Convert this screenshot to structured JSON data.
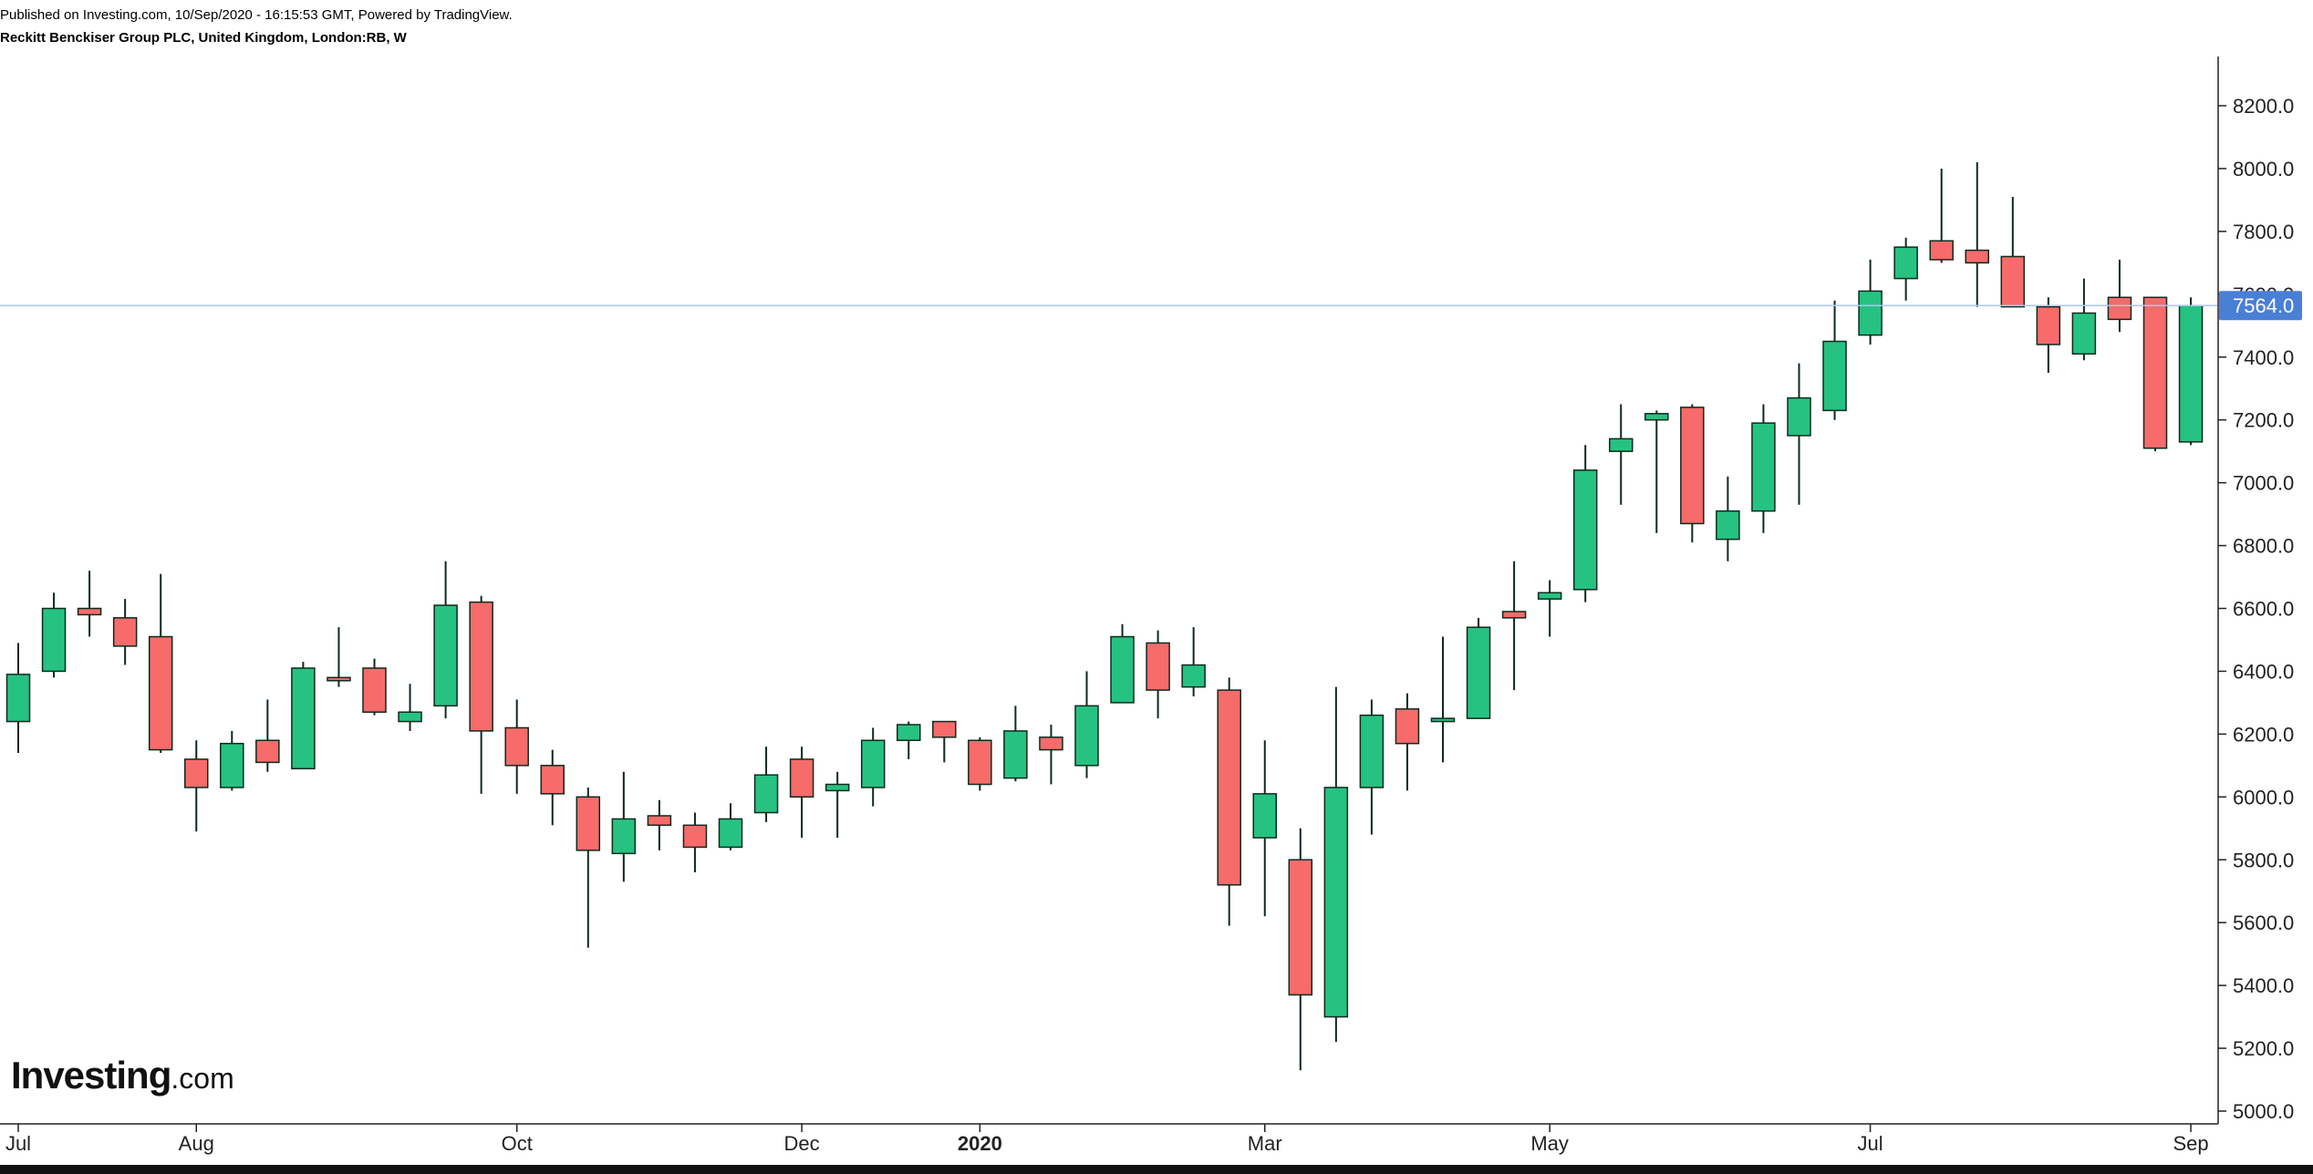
{
  "header": {
    "published": "Published on Investing.com, 10/Sep/2020 - 16:15:53 GMT, Powered by TradingView.",
    "symbol": "Reckitt Benckiser Group PLC, United Kingdom, London:RB, W"
  },
  "logo": {
    "brand": "Investing",
    "tld": ".com"
  },
  "colors": {
    "up": "#26c281",
    "down": "#f76b6b",
    "wick": "#0d2a1c",
    "price_line": "#a9c7ee",
    "price_tag": "#4a7fd6"
  },
  "chart_data": {
    "type": "candlestick",
    "interval": "W",
    "ylim": [
      4950,
      8370
    ],
    "y_ticks": [
      5000,
      5200,
      5400,
      5600,
      5800,
      6000,
      6200,
      6400,
      6600,
      6800,
      7000,
      7200,
      7400,
      7600,
      7800,
      8000,
      8200
    ],
    "y_tick_labels": [
      "5000.0",
      "5200.0",
      "5400.0",
      "5600.0",
      "5800.0",
      "6000.0",
      "6200.0",
      "6400.0",
      "6600.0",
      "6800.0",
      "7000.0",
      "7200.0",
      "7400.0",
      "7600.0",
      "7800.0",
      "8000.0",
      "8200.0"
    ],
    "x_labels": [
      {
        "label": "Jul",
        "index": 0,
        "bold": false
      },
      {
        "label": "Aug",
        "index": 5,
        "bold": false
      },
      {
        "label": "Oct",
        "index": 14,
        "bold": false
      },
      {
        "label": "Dec",
        "index": 22,
        "bold": false
      },
      {
        "label": "2020",
        "index": 27,
        "bold": true
      },
      {
        "label": "Mar",
        "index": 35,
        "bold": false
      },
      {
        "label": "May",
        "index": 43,
        "bold": false
      },
      {
        "label": "Jul",
        "index": 52,
        "bold": false
      },
      {
        "label": "Sep",
        "index": 61,
        "bold": false
      }
    ],
    "last_price": 7564.0,
    "last_price_label": "7564.0",
    "candles": [
      {
        "o": 6240,
        "h": 6490,
        "l": 6140,
        "c": 6390
      },
      {
        "o": 6400,
        "h": 6650,
        "l": 6380,
        "c": 6600
      },
      {
        "o": 6600,
        "h": 6720,
        "l": 6510,
        "c": 6580
      },
      {
        "o": 6570,
        "h": 6630,
        "l": 6420,
        "c": 6480
      },
      {
        "o": 6510,
        "h": 6710,
        "l": 6140,
        "c": 6150
      },
      {
        "o": 6120,
        "h": 6180,
        "l": 5890,
        "c": 6030
      },
      {
        "o": 6030,
        "h": 6210,
        "l": 6020,
        "c": 6170
      },
      {
        "o": 6180,
        "h": 6310,
        "l": 6080,
        "c": 6110
      },
      {
        "o": 6090,
        "h": 6430,
        "l": 6090,
        "c": 6410
      },
      {
        "o": 6380,
        "h": 6540,
        "l": 6350,
        "c": 6370
      },
      {
        "o": 6410,
        "h": 6440,
        "l": 6260,
        "c": 6270
      },
      {
        "o": 6240,
        "h": 6360,
        "l": 6210,
        "c": 6270
      },
      {
        "o": 6290,
        "h": 6750,
        "l": 6250,
        "c": 6610
      },
      {
        "o": 6620,
        "h": 6640,
        "l": 6010,
        "c": 6210
      },
      {
        "o": 6220,
        "h": 6310,
        "l": 6010,
        "c": 6100
      },
      {
        "o": 6100,
        "h": 6150,
        "l": 5910,
        "c": 6010
      },
      {
        "o": 6000,
        "h": 6030,
        "l": 5520,
        "c": 5830
      },
      {
        "o": 5820,
        "h": 6080,
        "l": 5730,
        "c": 5930
      },
      {
        "o": 5940,
        "h": 5990,
        "l": 5830,
        "c": 5910
      },
      {
        "o": 5910,
        "h": 5950,
        "l": 5760,
        "c": 5840
      },
      {
        "o": 5840,
        "h": 5980,
        "l": 5830,
        "c": 5930
      },
      {
        "o": 5950,
        "h": 6160,
        "l": 5920,
        "c": 6070
      },
      {
        "o": 6120,
        "h": 6160,
        "l": 5870,
        "c": 6000
      },
      {
        "o": 6020,
        "h": 6080,
        "l": 5870,
        "c": 6040
      },
      {
        "o": 6030,
        "h": 6220,
        "l": 5970,
        "c": 6180
      },
      {
        "o": 6180,
        "h": 6240,
        "l": 6120,
        "c": 6230
      },
      {
        "o": 6240,
        "h": 6240,
        "l": 6110,
        "c": 6190
      },
      {
        "o": 6180,
        "h": 6190,
        "l": 6020,
        "c": 6040
      },
      {
        "o": 6060,
        "h": 6290,
        "l": 6050,
        "c": 6210
      },
      {
        "o": 6190,
        "h": 6230,
        "l": 6040,
        "c": 6150
      },
      {
        "o": 6100,
        "h": 6400,
        "l": 6060,
        "c": 6290
      },
      {
        "o": 6300,
        "h": 6550,
        "l": 6300,
        "c": 6510
      },
      {
        "o": 6490,
        "h": 6530,
        "l": 6250,
        "c": 6340
      },
      {
        "o": 6350,
        "h": 6540,
        "l": 6320,
        "c": 6420
      },
      {
        "o": 6340,
        "h": 6380,
        "l": 5590,
        "c": 5720
      },
      {
        "o": 5870,
        "h": 6180,
        "l": 5620,
        "c": 6010
      },
      {
        "o": 5800,
        "h": 5900,
        "l": 5130,
        "c": 5370
      },
      {
        "o": 5300,
        "h": 6350,
        "l": 5220,
        "c": 6030
      },
      {
        "o": 6030,
        "h": 6310,
        "l": 5880,
        "c": 6260
      },
      {
        "o": 6280,
        "h": 6330,
        "l": 6020,
        "c": 6170
      },
      {
        "o": 6240,
        "h": 6510,
        "l": 6110,
        "c": 6250
      },
      {
        "o": 6250,
        "h": 6570,
        "l": 6250,
        "c": 6540
      },
      {
        "o": 6590,
        "h": 6750,
        "l": 6340,
        "c": 6570
      },
      {
        "o": 6630,
        "h": 6690,
        "l": 6510,
        "c": 6650
      },
      {
        "o": 6660,
        "h": 7120,
        "l": 6620,
        "c": 7040
      },
      {
        "o": 7100,
        "h": 7250,
        "l": 6930,
        "c": 7140
      },
      {
        "o": 7200,
        "h": 7230,
        "l": 6840,
        "c": 7220
      },
      {
        "o": 7240,
        "h": 7250,
        "l": 6810,
        "c": 6870
      },
      {
        "o": 6820,
        "h": 7020,
        "l": 6750,
        "c": 6910
      },
      {
        "o": 6910,
        "h": 7250,
        "l": 6840,
        "c": 7190
      },
      {
        "o": 7150,
        "h": 7380,
        "l": 6930,
        "c": 7270
      },
      {
        "o": 7230,
        "h": 7580,
        "l": 7200,
        "c": 7450
      },
      {
        "o": 7470,
        "h": 7710,
        "l": 7440,
        "c": 7610
      },
      {
        "o": 7650,
        "h": 7780,
        "l": 7580,
        "c": 7750
      },
      {
        "o": 7770,
        "h": 8000,
        "l": 7700,
        "c": 7710
      },
      {
        "o": 7740,
        "h": 8020,
        "l": 7560,
        "c": 7700
      },
      {
        "o": 7720,
        "h": 7910,
        "l": 7560,
        "c": 7560
      },
      {
        "o": 7560,
        "h": 7590,
        "l": 7350,
        "c": 7440
      },
      {
        "o": 7410,
        "h": 7650,
        "l": 7390,
        "c": 7540
      },
      {
        "o": 7590,
        "h": 7710,
        "l": 7480,
        "c": 7520
      },
      {
        "o": 7590,
        "h": 7590,
        "l": 7100,
        "c": 7110
      },
      {
        "o": 7130,
        "h": 7590,
        "l": 7120,
        "c": 7564
      }
    ]
  }
}
